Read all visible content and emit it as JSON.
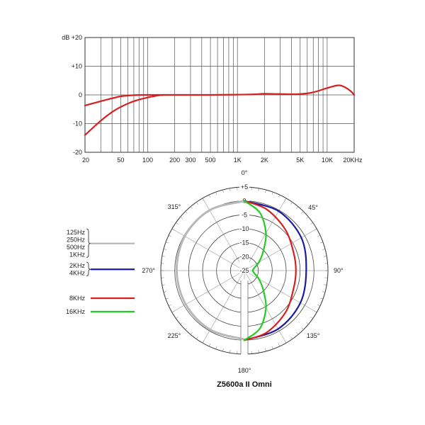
{
  "chart_data": [
    {
      "type": "line",
      "title": "",
      "xlabel": "",
      "ylabel": "",
      "x_scale": "log",
      "xlim": [
        20,
        20000
      ],
      "ylim": [
        -20,
        20
      ],
      "grid": true,
      "x_ticks": [
        {
          "value": 20,
          "label": "20"
        },
        {
          "value": 50,
          "label": "50"
        },
        {
          "value": 100,
          "label": "100"
        },
        {
          "value": 200,
          "label": "200"
        },
        {
          "value": 300,
          "label": "300"
        },
        {
          "value": 500,
          "label": "500"
        },
        {
          "value": 1000,
          "label": "1K"
        },
        {
          "value": 2000,
          "label": "2K"
        },
        {
          "value": 5000,
          "label": "5K"
        },
        {
          "value": 10000,
          "label": "10K"
        },
        {
          "value": 20000,
          "label": "20KHz"
        }
      ],
      "y_ticks": [
        {
          "value": 20,
          "label": "dB +20"
        },
        {
          "value": 10,
          "label": "+10"
        },
        {
          "value": 0,
          "label": "0"
        },
        {
          "value": -10,
          "label": "-10"
        },
        {
          "value": -20,
          "label": "-20"
        }
      ],
      "series": [
        {
          "color": "#d42020",
          "style": "solid",
          "x": [
            20,
            30,
            40,
            50,
            70,
            100,
            150,
            200,
            500,
            1000,
            1500,
            2000,
            3000,
            5000,
            7000,
            10000,
            13000,
            15000,
            18000,
            20000
          ],
          "y": [
            -3.7,
            -2.2,
            -1.2,
            -0.5,
            -0.1,
            0,
            0,
            0,
            0,
            0.1,
            0.2,
            0.4,
            0.3,
            0.3,
            0.9,
            2.4,
            3.3,
            3.0,
            1.5,
            0
          ]
        },
        {
          "color": "#d42020",
          "style": "dashed",
          "x": [
            20,
            30,
            40,
            50,
            70,
            100,
            130,
            150
          ],
          "y": [
            -14,
            -9,
            -6,
            -4.2,
            -2.2,
            -0.9,
            -0.2,
            0
          ]
        }
      ]
    },
    {
      "type": "polar",
      "title": "Z5600a II Omni",
      "r_range": [
        -25,
        5
      ],
      "r_ticks": [
        "+5",
        "0",
        "-5",
        "-10",
        "-15",
        "-20",
        "-25"
      ],
      "angle_ticks": [
        {
          "deg": 0,
          "label": "0°"
        },
        {
          "deg": 45,
          "label": "45°"
        },
        {
          "deg": 90,
          "label": "90°"
        },
        {
          "deg": 135,
          "label": "135°"
        },
        {
          "deg": 180,
          "label": "180°"
        },
        {
          "deg": 225,
          "label": "225°"
        },
        {
          "deg": 270,
          "label": "270°"
        },
        {
          "deg": 315,
          "label": "315°"
        }
      ],
      "series": [
        {
          "name": "125Hz 250Hz 500Hz 1KHz",
          "color": "#b8b8b8",
          "side": "left",
          "angles": [
            0,
            30,
            60,
            90,
            120,
            150,
            180
          ],
          "values": [
            0,
            0,
            -0.3,
            -0.7,
            -0.7,
            -0.5,
            -0.3
          ]
        },
        {
          "name": "2KHz 4KHz",
          "color": "#1a1aa0",
          "side": "right",
          "angles": [
            0,
            30,
            60,
            90,
            120,
            150,
            180
          ],
          "values": [
            0,
            -0.4,
            -1.4,
            -2.8,
            -1.8,
            -0.8,
            0
          ]
        },
        {
          "name": "8KHz",
          "color": "#d42020",
          "side": "right",
          "angles": [
            0,
            20,
            45,
            70,
            90,
            110,
            135,
            160,
            180
          ],
          "values": [
            0,
            -1.6,
            -4.2,
            -6.2,
            -6.5,
            -6.2,
            -4.0,
            -1.4,
            0
          ]
        },
        {
          "name": "16KHz",
          "color": "#22cc22",
          "side": "right",
          "angles": [
            0,
            15,
            30,
            45,
            60,
            75,
            90,
            105,
            120,
            135,
            150,
            165,
            180
          ],
          "values": [
            0,
            -3.5,
            -9.5,
            -15.5,
            -19,
            -21.3,
            -22,
            -21.3,
            -19,
            -15.5,
            -9.5,
            -3.5,
            0
          ]
        }
      ],
      "legend": [
        {
          "lines": [
            "125Hz",
            "250Hz",
            "500Hz",
            "1KHz"
          ],
          "color": "#b8b8b8"
        },
        {
          "lines": [
            "2KHz",
            "4KHz"
          ],
          "color": "#1a1aa0"
        },
        {
          "lines": [
            "8KHz"
          ],
          "color": "#d42020"
        },
        {
          "lines": [
            "16KHz"
          ],
          "color": "#22cc22"
        }
      ]
    }
  ]
}
